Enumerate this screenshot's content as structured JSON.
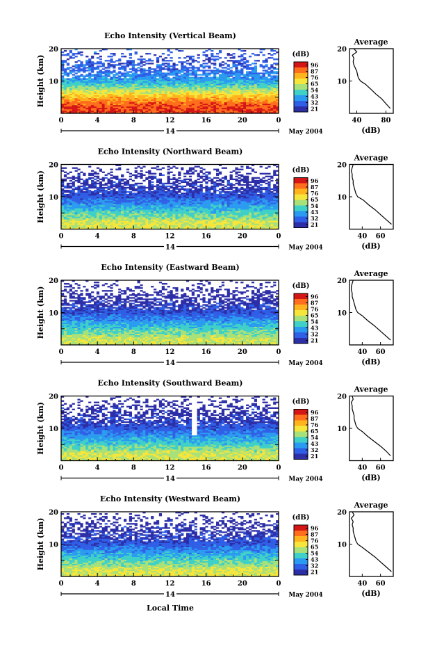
{
  "figure": {
    "time_axis_label": "Local Time",
    "date_label": "May 2004",
    "day_label": "14"
  },
  "colorbar": {
    "unit": "(dB)",
    "ticks": [
      "96",
      "87",
      "76",
      "65",
      "54",
      "43",
      "32",
      "21"
    ],
    "colors": [
      "#d51616",
      "#ff6e1c",
      "#ffb41e",
      "#f6e63c",
      "#a8e07a",
      "#3fd0c8",
      "#2a9bf0",
      "#2f5fe6",
      "#2d2fa8"
    ]
  },
  "chart_data": [
    {
      "type": "heatmap",
      "title": "Echo Intensity (Vertical Beam)",
      "xlabel": "",
      "ylabel": "Height (km)",
      "xlim": [
        0,
        24
      ],
      "ylim": [
        0,
        20
      ],
      "xticks": [
        "0",
        "4",
        "8",
        "12",
        "16",
        "20",
        "0"
      ],
      "yticks": [
        "10",
        "20"
      ],
      "z_unit": "dB",
      "zlim": [
        21,
        96
      ],
      "height_km": [
        2,
        4,
        6,
        8,
        10,
        12,
        14,
        16,
        18,
        20
      ],
      "mean_intensity_db": [
        88,
        80,
        68,
        55,
        44,
        38,
        34,
        32,
        31,
        34
      ],
      "gaps": [],
      "average_profile": {
        "title": "Average",
        "xlabel": "(dB)",
        "xticks": [
          "40",
          "80"
        ],
        "xlim": [
          30,
          90
        ],
        "yticks": [
          "10",
          "20"
        ],
        "height_km": [
          1.5,
          3,
          4.5,
          6,
          7.5,
          9,
          10,
          11,
          12,
          13,
          14,
          15,
          16,
          17,
          18,
          19,
          20
        ],
        "db": [
          86,
          80,
          74,
          66,
          59,
          52,
          45,
          42,
          41,
          40,
          38,
          36,
          35,
          36,
          34,
          40,
          36
        ]
      }
    },
    {
      "type": "heatmap",
      "title": "Echo Intensity (Northward Beam)",
      "xlabel": "",
      "ylabel": "Height (km)",
      "xlim": [
        0,
        24
      ],
      "ylim": [
        0,
        20
      ],
      "xticks": [
        "0",
        "4",
        "8",
        "12",
        "16",
        "20",
        "0"
      ],
      "yticks": [
        "10",
        "20"
      ],
      "z_unit": "dB",
      "zlim": [
        21,
        96
      ],
      "height_km": [
        2,
        4,
        6,
        8,
        10,
        12,
        14,
        16,
        18,
        20
      ],
      "mean_intensity_db": [
        64,
        55,
        48,
        40,
        32,
        28,
        25,
        24,
        23,
        23
      ],
      "gaps": [],
      "average_profile": {
        "title": "Average",
        "xlabel": "(dB)",
        "xticks": [
          "40",
          "60"
        ],
        "xlim": [
          26,
          74
        ],
        "yticks": [
          "10",
          "20"
        ],
        "height_km": [
          1.5,
          3,
          4.5,
          6,
          7.5,
          9,
          10,
          11,
          12,
          13,
          14,
          15,
          16,
          17,
          18,
          19,
          20
        ],
        "db": [
          72,
          66,
          60,
          54,
          47,
          41,
          35,
          33,
          32,
          31,
          30,
          30,
          29,
          29,
          28,
          29,
          30
        ]
      }
    },
    {
      "type": "heatmap",
      "title": "Echo Intensity (Eastward Beam)",
      "xlabel": "",
      "ylabel": "Height (km)",
      "xlim": [
        0,
        24
      ],
      "ylim": [
        0,
        20
      ],
      "xticks": [
        "0",
        "4",
        "8",
        "12",
        "16",
        "20",
        "0"
      ],
      "yticks": [
        "10",
        "20"
      ],
      "z_unit": "dB",
      "zlim": [
        21,
        96
      ],
      "height_km": [
        2,
        4,
        6,
        8,
        10,
        12,
        14,
        16,
        18,
        20
      ],
      "mean_intensity_db": [
        62,
        54,
        47,
        39,
        31,
        27,
        24,
        23,
        22,
        22
      ],
      "gaps": [],
      "average_profile": {
        "title": "Average",
        "xlabel": "(dB)",
        "xticks": [
          "40",
          "60"
        ],
        "xlim": [
          26,
          74
        ],
        "yticks": [
          "10",
          "20"
        ],
        "height_km": [
          1.5,
          3,
          4.5,
          6,
          7.5,
          9,
          10,
          11,
          12,
          13,
          14,
          15,
          16,
          17,
          18,
          19,
          20
        ],
        "db": [
          71,
          65,
          59,
          53,
          46,
          40,
          35,
          33,
          32,
          31,
          30,
          29,
          29,
          28,
          28,
          29,
          30
        ]
      }
    },
    {
      "type": "heatmap",
      "title": "Echo Intensity (Southward Beam)",
      "xlabel": "",
      "ylabel": "Height (km)",
      "xlim": [
        0,
        24
      ],
      "ylim": [
        0,
        20
      ],
      "xticks": [
        "0",
        "4",
        "8",
        "12",
        "16",
        "20",
        "0"
      ],
      "yticks": [
        "10",
        "20"
      ],
      "z_unit": "dB",
      "zlim": [
        21,
        96
      ],
      "height_km": [
        2,
        4,
        6,
        8,
        10,
        12,
        14,
        16,
        18,
        20
      ],
      "mean_intensity_db": [
        63,
        55,
        47,
        40,
        32,
        28,
        25,
        24,
        23,
        23
      ],
      "gaps": [
        [
          14.4,
          15.0,
          8,
          20
        ]
      ],
      "average_profile": {
        "title": "Average",
        "xlabel": "(dB)",
        "xticks": [
          "40",
          "60"
        ],
        "xlim": [
          26,
          74
        ],
        "yticks": [
          "10",
          "20"
        ],
        "height_km": [
          1.5,
          3,
          4.5,
          6,
          7.5,
          9,
          10,
          11,
          12,
          13,
          14,
          15,
          16,
          17,
          18,
          19,
          20
        ],
        "db": [
          71,
          66,
          60,
          53,
          46,
          40,
          35,
          33,
          32,
          31,
          31,
          30,
          29,
          29,
          28,
          30,
          29
        ]
      }
    },
    {
      "type": "heatmap",
      "title": "Echo Intensity (Westward Beam)",
      "xlabel": "Local Time",
      "ylabel": "Height (km)",
      "xlim": [
        0,
        24
      ],
      "ylim": [
        0,
        20
      ],
      "xticks": [
        "0",
        "4",
        "8",
        "12",
        "16",
        "20",
        "0"
      ],
      "yticks": [
        "10",
        "20"
      ],
      "z_unit": "dB",
      "zlim": [
        21,
        96
      ],
      "height_km": [
        2,
        4,
        6,
        8,
        10,
        12,
        14,
        16,
        18,
        20
      ],
      "mean_intensity_db": [
        64,
        55,
        48,
        40,
        32,
        28,
        25,
        24,
        23,
        23
      ],
      "gaps": [
        [
          15.1,
          15.4,
          13,
          20
        ]
      ],
      "average_profile": {
        "title": "Average",
        "xlabel": "(dB)",
        "xticks": [
          "40",
          "60"
        ],
        "xlim": [
          26,
          74
        ],
        "yticks": [
          "10",
          "20"
        ],
        "height_km": [
          1.5,
          3,
          4.5,
          6,
          7.5,
          9,
          10,
          11,
          12,
          13,
          14,
          15,
          16,
          17,
          18,
          19,
          20
        ],
        "db": [
          72,
          66,
          60,
          54,
          47,
          40,
          35,
          33,
          32,
          31,
          30,
          30,
          29,
          30,
          28,
          31,
          29
        ]
      }
    }
  ]
}
